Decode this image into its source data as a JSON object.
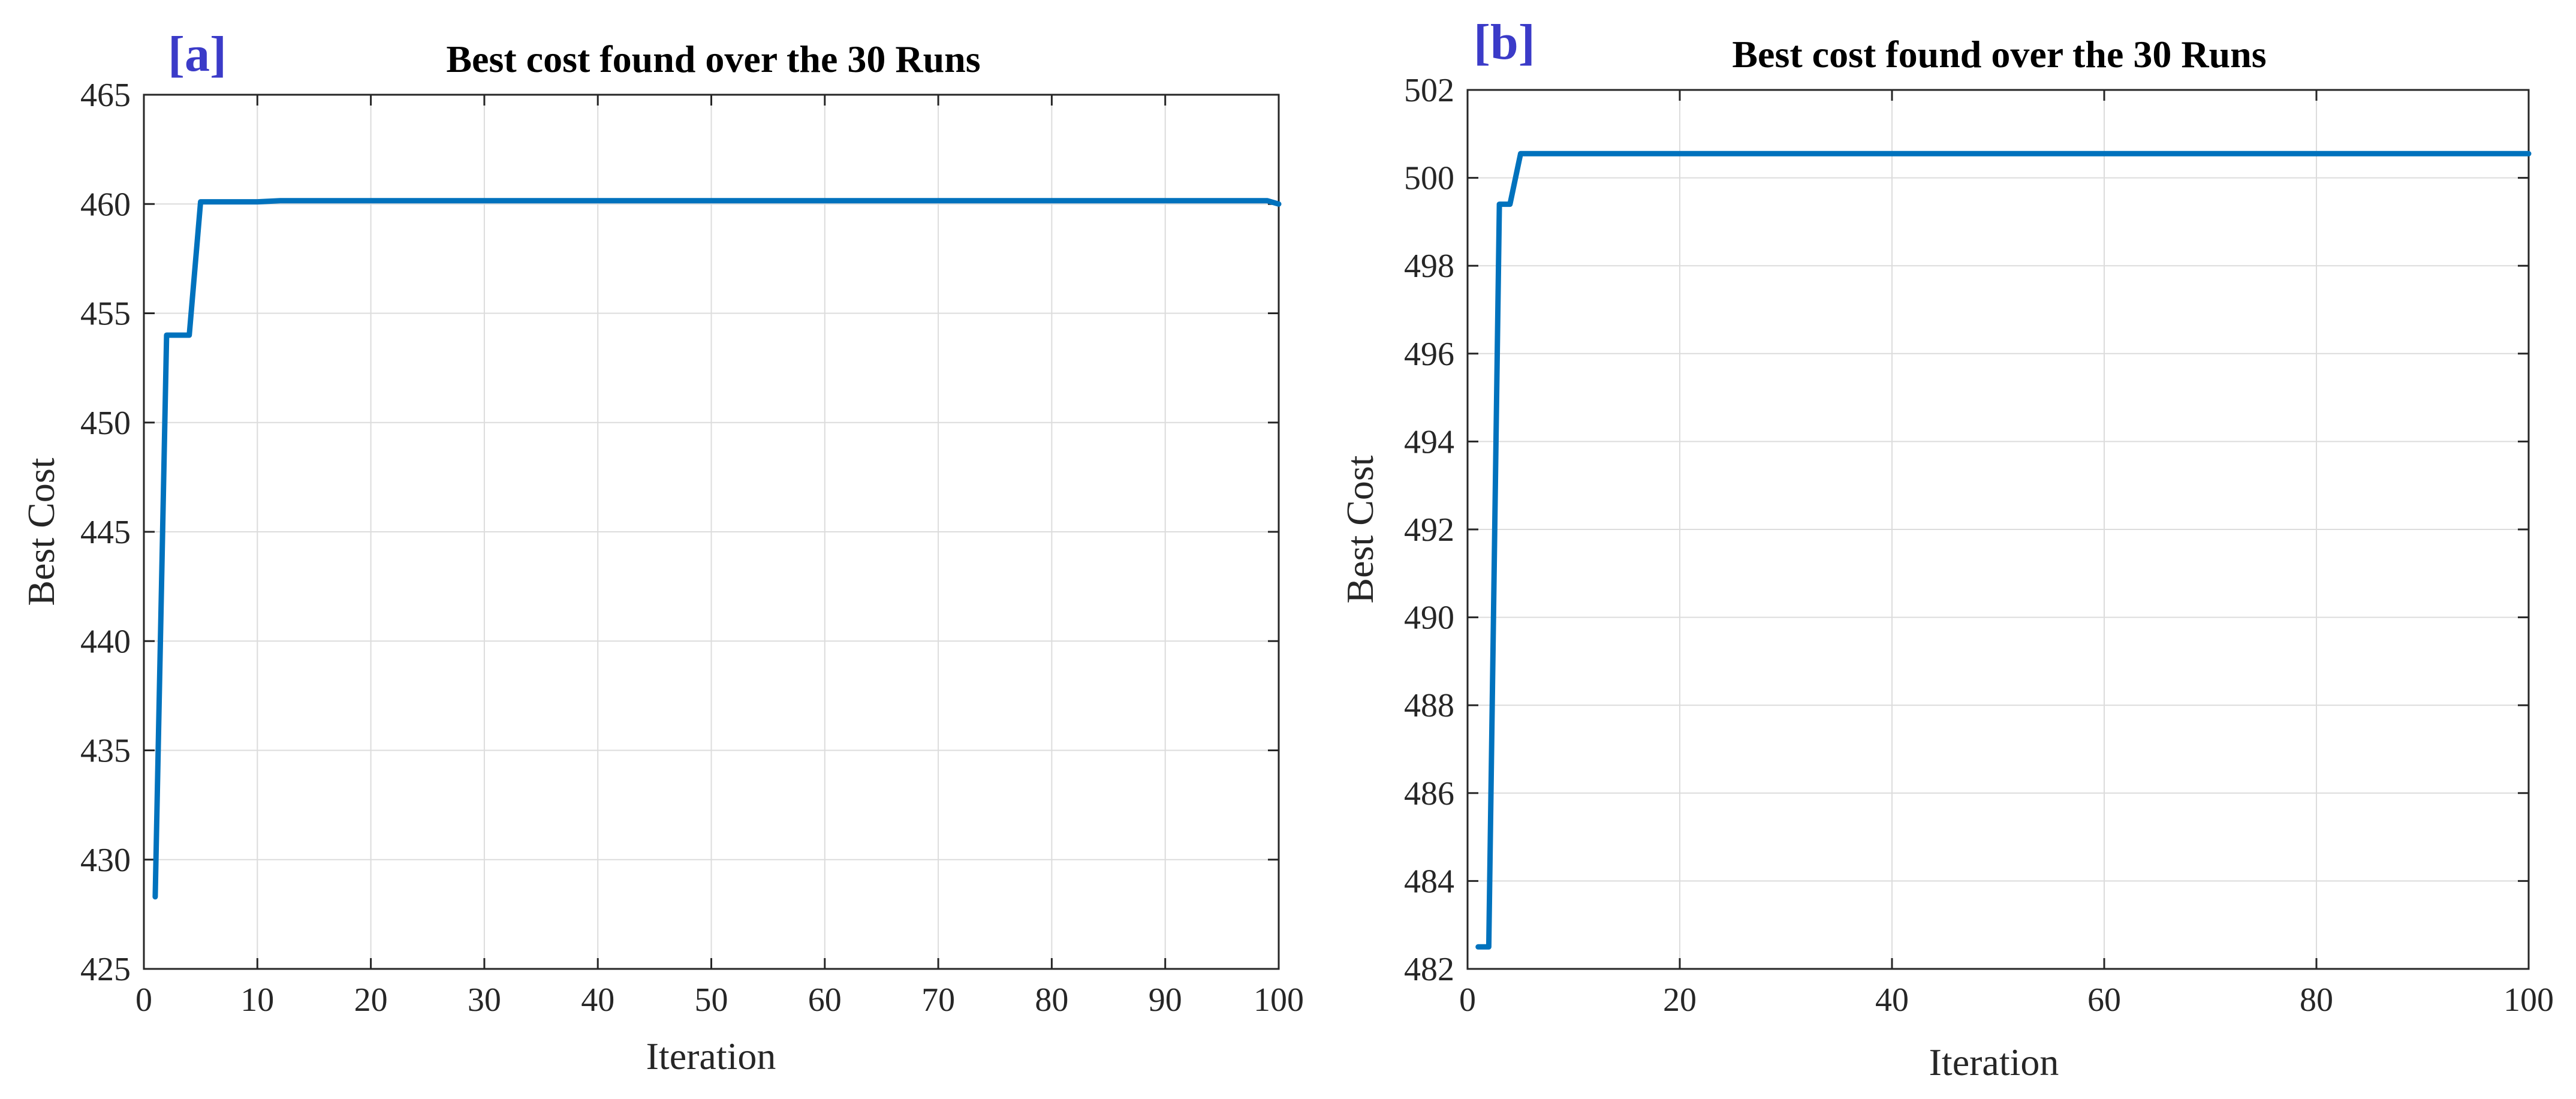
{
  "colors": {
    "series": "#0072BD",
    "panel_label": "#3B3BC8"
  },
  "chart_data": [
    {
      "panel_label": "[a]",
      "type": "line",
      "title": "Best cost found over the 30 Runs",
      "xlabel": "Iteration",
      "ylabel": "Best Cost",
      "xlim": [
        0,
        100
      ],
      "ylim": [
        425,
        465
      ],
      "xticks": [
        0,
        10,
        20,
        30,
        40,
        50,
        60,
        70,
        80,
        90,
        100
      ],
      "yticks": [
        425,
        430,
        435,
        440,
        445,
        450,
        455,
        460,
        465
      ],
      "grid": true,
      "series": [
        {
          "x": [
            1,
            2,
            3,
            4,
            5,
            6,
            10,
            12,
            20,
            50,
            99,
            100
          ],
          "values": [
            428.3,
            454.0,
            454.0,
            454.0,
            460.1,
            460.1,
            460.1,
            460.15,
            460.15,
            460.15,
            460.15,
            460.0
          ]
        }
      ]
    },
    {
      "panel_label": "[b]",
      "type": "line",
      "title": "Best cost found over the 30 Runs",
      "xlabel": "Iteration",
      "ylabel": "Best Cost",
      "xlim": [
        0,
        100
      ],
      "ylim": [
        482,
        502
      ],
      "xticks": [
        0,
        20,
        40,
        60,
        80,
        100
      ],
      "yticks": [
        482,
        484,
        486,
        488,
        490,
        492,
        494,
        496,
        498,
        500,
        502
      ],
      "grid": true,
      "series": [
        {
          "x": [
            1,
            2,
            3,
            4,
            5,
            10,
            20,
            50,
            100
          ],
          "values": [
            482.5,
            482.5,
            499.4,
            499.4,
            500.55,
            500.55,
            500.55,
            500.55,
            500.55
          ]
        }
      ]
    }
  ]
}
